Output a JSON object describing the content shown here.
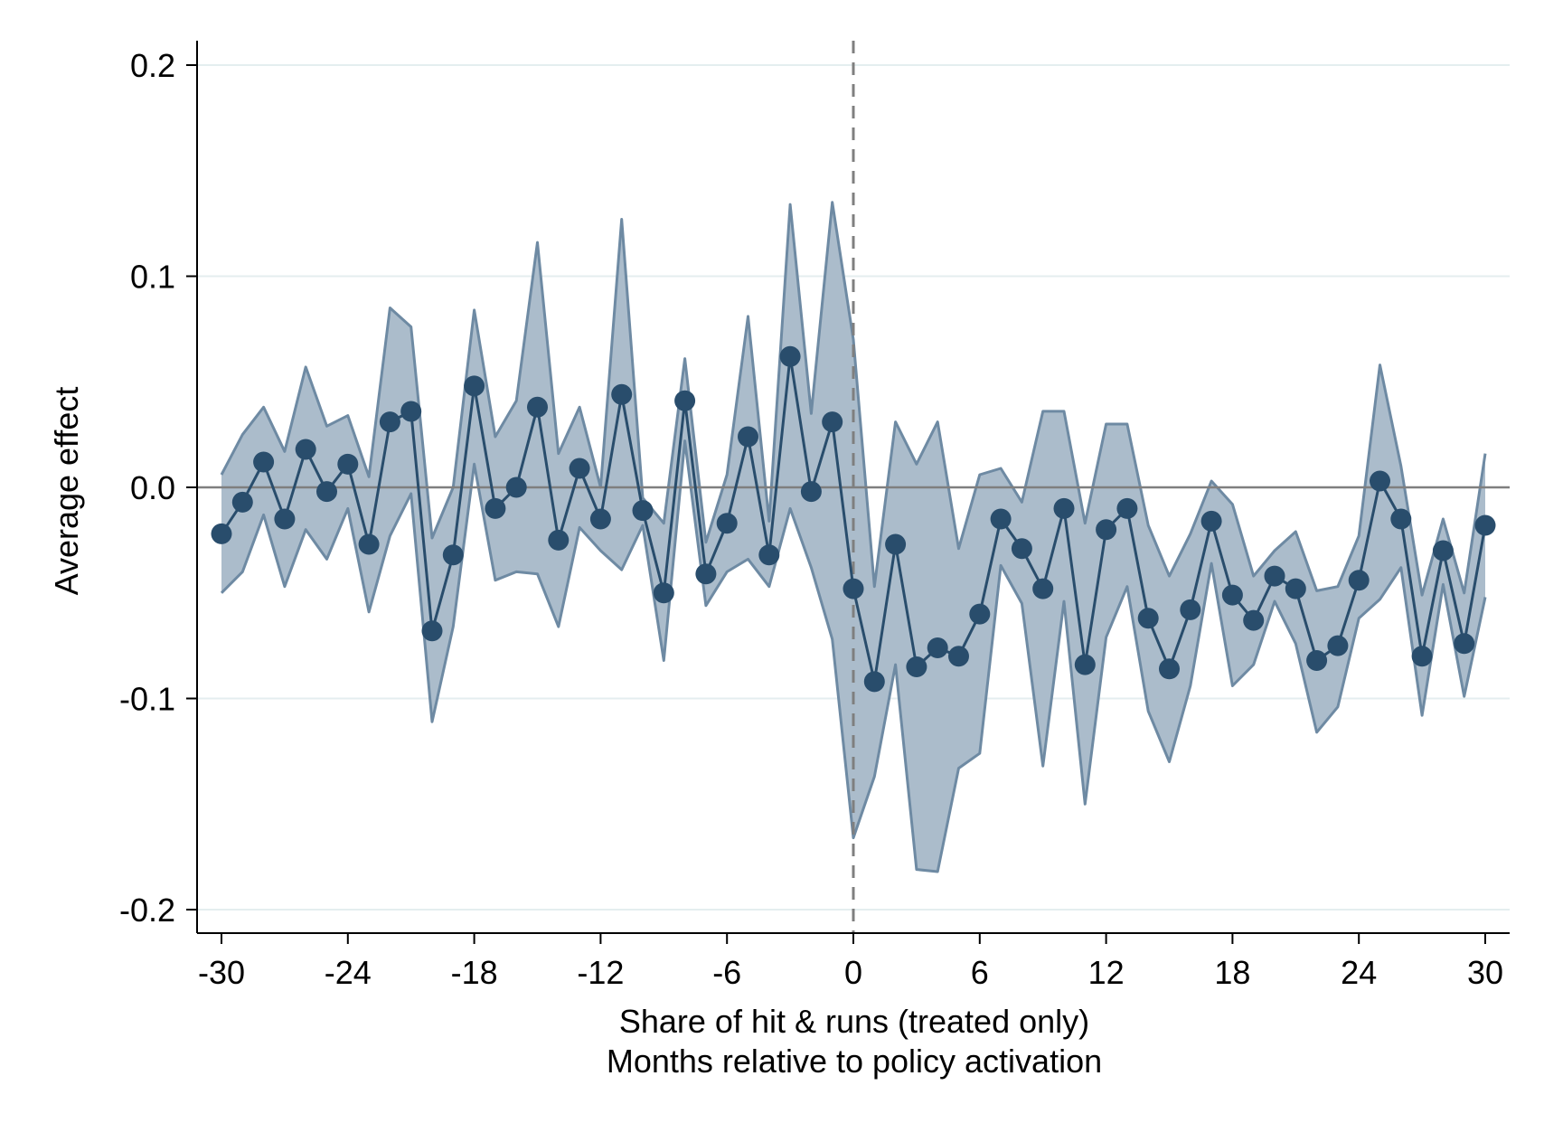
{
  "chart_data": {
    "type": "line",
    "title": "",
    "xlabel": "Share of hit & runs (treated only)",
    "xlabel2": "Months relative to policy activation",
    "ylabel": "Average effect",
    "xlim": [
      -30,
      30
    ],
    "ylim": [
      -0.2,
      0.2
    ],
    "xticks": [
      -30,
      -24,
      -18,
      -12,
      -6,
      0,
      6,
      12,
      18,
      24,
      30
    ],
    "xtick_labels": [
      "-30",
      "-24",
      "-18",
      "-12",
      "-6",
      "0",
      "6",
      "12",
      "18",
      "24",
      "30"
    ],
    "yticks": [
      -0.2,
      -0.1,
      0.0,
      0.1,
      0.2
    ],
    "ytick_labels": [
      "-0.2",
      "-0.1",
      "0.0",
      "0.1",
      "0.2"
    ],
    "grid": "horizontal",
    "reference_lines": {
      "horizontal_y": 0,
      "vertical_x_dashed": 0
    },
    "colors": {
      "series": "#294d6c",
      "band_fill": "#abbccb",
      "band_edge": "#6e8aa3",
      "grid": "#e4eeef",
      "reference": "#7f7f7f"
    },
    "x": [
      -30,
      -29,
      -28,
      -27,
      -26,
      -25,
      -24,
      -23,
      -22,
      -21,
      -20,
      -19,
      -18,
      -17,
      -16,
      -15,
      -14,
      -13,
      -12,
      -11,
      -10,
      -9,
      -8,
      -7,
      -6,
      -5,
      -4,
      -3,
      -2,
      -1,
      0,
      1,
      2,
      3,
      4,
      5,
      6,
      7,
      8,
      9,
      10,
      11,
      12,
      13,
      14,
      15,
      16,
      17,
      18,
      19,
      20,
      21,
      22,
      23,
      24,
      25,
      26,
      27,
      28,
      29,
      30
    ],
    "series": [
      {
        "type": "line-with-markers",
        "values": [
          -0.022,
          -0.007,
          0.012,
          -0.015,
          0.018,
          -0.002,
          0.011,
          -0.027,
          0.031,
          0.036,
          -0.068,
          -0.032,
          0.048,
          -0.01,
          0.0,
          0.038,
          -0.025,
          0.009,
          -0.015,
          0.044,
          -0.011,
          -0.05,
          0.041,
          -0.041,
          -0.017,
          0.024,
          -0.032,
          0.062,
          -0.002,
          0.031,
          -0.048,
          -0.092,
          -0.027,
          -0.085,
          -0.076,
          -0.08,
          -0.06,
          -0.015,
          -0.029,
          -0.048,
          -0.01,
          -0.084,
          -0.02,
          -0.01,
          -0.062,
          -0.086,
          -0.058,
          -0.016,
          -0.051,
          -0.063,
          -0.042,
          -0.048,
          -0.082,
          -0.075,
          -0.044,
          0.003,
          -0.015,
          -0.08,
          -0.03,
          -0.074,
          -0.018
        ]
      },
      {
        "type": "confidence-band",
        "lower": [
          -0.05,
          -0.04,
          -0.013,
          -0.047,
          -0.02,
          -0.034,
          -0.01,
          -0.059,
          -0.023,
          -0.003,
          -0.111,
          -0.066,
          0.011,
          -0.044,
          -0.04,
          -0.041,
          -0.066,
          -0.019,
          -0.03,
          -0.039,
          -0.018,
          -0.082,
          0.022,
          -0.056,
          -0.04,
          -0.034,
          -0.047,
          -0.01,
          -0.038,
          -0.072,
          -0.166,
          -0.137,
          -0.084,
          -0.181,
          -0.182,
          -0.133,
          -0.126,
          -0.037,
          -0.055,
          -0.132,
          -0.054,
          -0.15,
          -0.071,
          -0.047,
          -0.106,
          -0.13,
          -0.094,
          -0.036,
          -0.094,
          -0.084,
          -0.054,
          -0.074,
          -0.116,
          -0.104,
          -0.062,
          -0.053,
          -0.038,
          -0.108,
          -0.046,
          -0.099,
          -0.052
        ],
        "upper": [
          0.006,
          0.025,
          0.038,
          0.017,
          0.057,
          0.029,
          0.034,
          0.005,
          0.085,
          0.076,
          -0.024,
          0.0,
          0.084,
          0.024,
          0.041,
          0.116,
          0.016,
          0.038,
          0.0,
          0.127,
          -0.005,
          -0.017,
          0.061,
          -0.026,
          0.006,
          0.081,
          -0.016,
          0.134,
          0.035,
          0.135,
          0.07,
          -0.047,
          0.031,
          0.011,
          0.031,
          -0.029,
          0.006,
          0.009,
          -0.007,
          0.036,
          0.036,
          -0.017,
          0.03,
          0.03,
          -0.018,
          -0.042,
          -0.022,
          0.003,
          -0.008,
          -0.042,
          -0.03,
          -0.021,
          -0.049,
          -0.047,
          -0.023,
          0.058,
          0.01,
          -0.051,
          -0.015,
          -0.05,
          0.016
        ]
      }
    ]
  }
}
